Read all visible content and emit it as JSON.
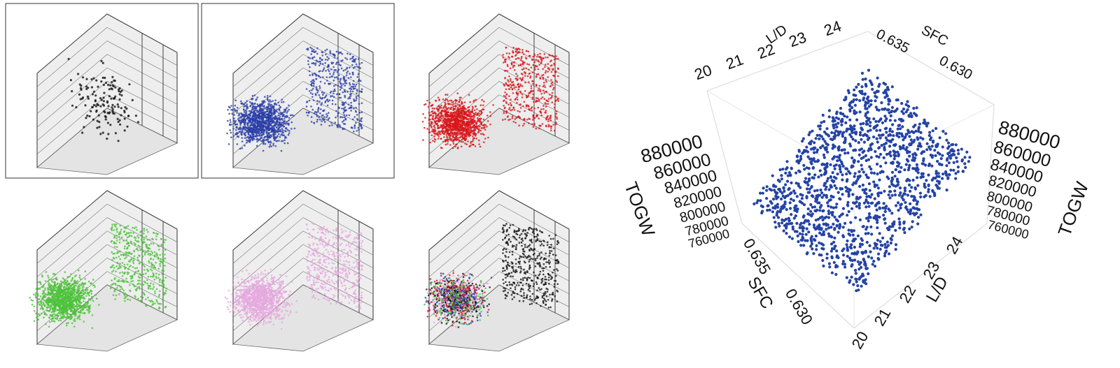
{
  "small_plots": [
    {
      "color": "#111111"
    },
    {
      "color": "#2a3fa8"
    },
    {
      "color": "#d8161b"
    },
    {
      "color": "#4cc23a"
    },
    {
      "color": "#e6a9de"
    },
    {
      "colors": [
        "#2a3fa8",
        "#111111",
        "#d8161b",
        "#4cc23a",
        "#e6a9de"
      ]
    }
  ],
  "main_plot": {
    "color": "#2443a6",
    "top_ld": {
      "title": "L/D",
      "ticks": [
        "20",
        "21",
        "22",
        "23",
        "24"
      ]
    },
    "top_sfc": {
      "title": "SFC",
      "ticks": [
        "0.635",
        "0.630"
      ]
    },
    "left_togw": {
      "title": "TOGW",
      "ticks": [
        "880000",
        "860000",
        "840000",
        "820000",
        "800000",
        "780000",
        "760000"
      ]
    },
    "right_togw": {
      "title": "TOGW",
      "ticks": [
        "880000",
        "860000",
        "840000",
        "820000",
        "800000",
        "780000",
        "760000"
      ]
    },
    "bottom_sfc": {
      "title": "SFC",
      "ticks": [
        "0.635",
        "0.630"
      ]
    },
    "bottom_ld": {
      "title": "L/D",
      "ticks": [
        "20",
        "21",
        "22",
        "23",
        "24"
      ]
    }
  }
}
